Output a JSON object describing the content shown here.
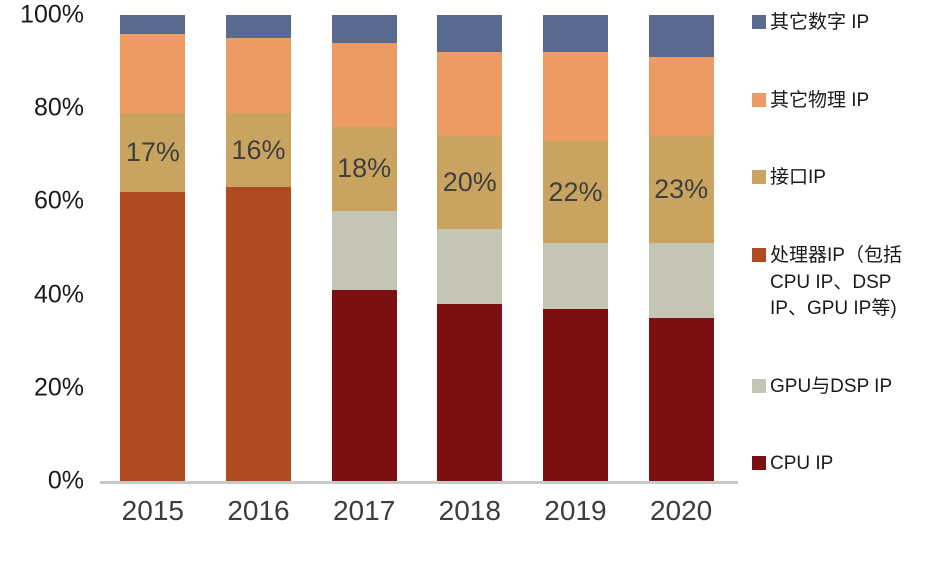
{
  "chart_data": {
    "type": "bar",
    "variant": "stacked-percent-column",
    "title": "",
    "xlabel": "",
    "ylabel": "",
    "ylim": [
      0,
      100
    ],
    "grid": false,
    "legend_position": "right",
    "categories": [
      "2015",
      "2016",
      "2017",
      "2018",
      "2019",
      "2020"
    ],
    "y_ticks": [
      "0%",
      "20%",
      "40%",
      "60%",
      "80%",
      "100%"
    ],
    "series": [
      {
        "name": "CPU IP",
        "color": "#7c0f12",
        "values": [
          0,
          0,
          41,
          38,
          37,
          35
        ]
      },
      {
        "name": "GPU与DSP IP",
        "color": "#c5c5b5",
        "values": [
          0,
          0,
          17,
          16,
          14,
          16
        ]
      },
      {
        "name": "处理器IP（包括CPU IP、DSP IP、GPU IP等)",
        "color": "#b04a20",
        "values": [
          62,
          63,
          0,
          0,
          0,
          0
        ]
      },
      {
        "name": "接口IP",
        "color": "#c9a460",
        "values": [
          17,
          16,
          18,
          20,
          22,
          23
        ],
        "show_labels": true
      },
      {
        "name": "其它物理 IP",
        "color": "#ec9c63",
        "values": [
          17,
          16,
          18,
          18,
          19,
          17
        ]
      },
      {
        "name": "其它数字 IP",
        "color": "#596a8e",
        "values": [
          4,
          5,
          6,
          8,
          8,
          9
        ]
      }
    ],
    "data_labels": [
      "17%",
      "16%",
      "18%",
      "20%",
      "22%",
      "23%"
    ],
    "legend": [
      {
        "label": "其它数字 IP",
        "color": "#596a8e"
      },
      {
        "label": "其它物理 IP",
        "color": "#ec9c63"
      },
      {
        "label": "接口IP",
        "color": "#c9a460"
      },
      {
        "label": "处理器IP（包括\nCPU IP、DSP\nIP、GPU IP等)",
        "color": "#b04a20"
      },
      {
        "label": "GPU与DSP IP",
        "color": "#c5c5b5"
      },
      {
        "label": "CPU IP",
        "color": "#7c0f12"
      }
    ]
  }
}
